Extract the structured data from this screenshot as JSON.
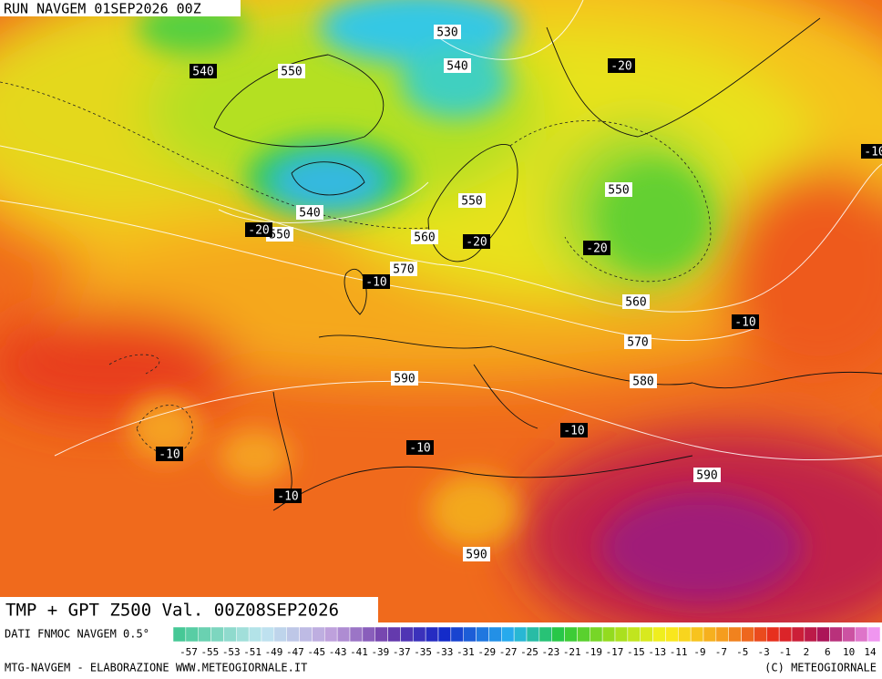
{
  "header": {
    "run": "RUN NAVGEM 01SEP2026 00Z",
    "product": "TMP + GPT Z500 Val. 00Z08SEP2026"
  },
  "footer": {
    "source": "DATI FNMOC NAVGEM 0.5°",
    "credit": "MTG-NAVGEM - ELABORAZIONE WWW.METEOGIORNALE.IT",
    "copyright": "(C) METEOGIORNALE"
  },
  "colorbar": {
    "labels": [
      -57,
      -55,
      -53,
      -51,
      -49,
      -47,
      -45,
      -43,
      -41,
      -39,
      -37,
      -35,
      -33,
      -31,
      -29,
      -27,
      -25,
      -23,
      -21,
      -19,
      -17,
      -15,
      -13,
      -11,
      -9,
      -7,
      -5,
      -3,
      -1,
      2,
      6,
      10,
      14
    ]
  },
  "map": {
    "geopotential_labels": [
      "530",
      "550",
      "540",
      "550",
      "550",
      "540",
      "550",
      "560",
      "570",
      "560",
      "570",
      "590",
      "580",
      "590",
      "590"
    ],
    "temperature_labels": [
      "540",
      "-20",
      "-10",
      "-20",
      "-20",
      "-20",
      "-10",
      "-10",
      "-10",
      "-10",
      "-10",
      "-10"
    ]
  }
}
